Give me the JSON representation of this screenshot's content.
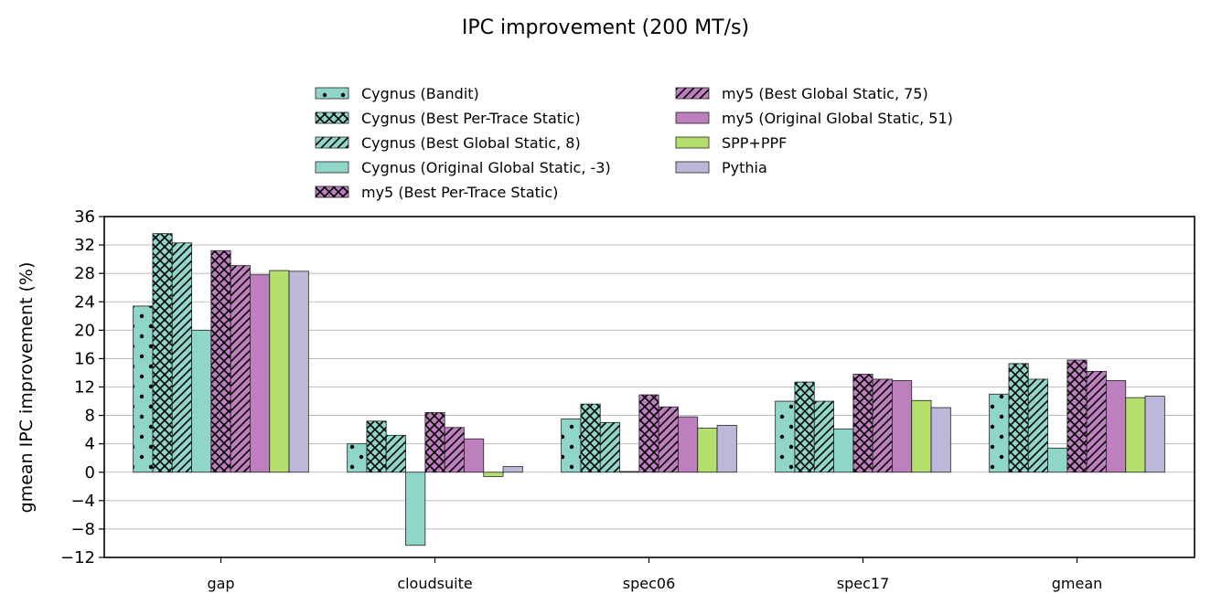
{
  "chart_data": {
    "type": "bar",
    "title": "IPC improvement (200 MT/s)",
    "xlabel": "",
    "ylabel": "gmean IPC improvement (%)",
    "ylim": [
      -12,
      36
    ],
    "yticks": [
      -12,
      -8,
      -4,
      0,
      4,
      8,
      12,
      16,
      20,
      24,
      28,
      32,
      36
    ],
    "grid": "horizontal",
    "legend_position": "top-center",
    "categories": [
      "gap",
      "cloudsuite",
      "spec06",
      "spec17",
      "gmean"
    ],
    "series": [
      {
        "name": "Cygnus (Bandit)",
        "color": "#8fd5c8",
        "hatch": "dots",
        "values": [
          23.4,
          4.0,
          7.5,
          10.0,
          11.0
        ]
      },
      {
        "name": "Cygnus (Best Per-Trace Static)",
        "color": "#8fd5c8",
        "hatch": "cross",
        "values": [
          33.6,
          7.2,
          9.6,
          12.7,
          15.3
        ]
      },
      {
        "name": "Cygnus (Best Global Static, 8)",
        "color": "#8fd5c8",
        "hatch": "diagonal",
        "values": [
          32.3,
          5.2,
          7.0,
          10.0,
          13.1
        ]
      },
      {
        "name": "Cygnus (Original Global Static, -3)",
        "color": "#8fd5c8",
        "hatch": "none",
        "values": [
          20.0,
          -10.3,
          0.1,
          6.1,
          3.4
        ]
      },
      {
        "name": "my5 (Best Per-Trace Static)",
        "color": "#bd7fbd",
        "hatch": "cross",
        "values": [
          31.2,
          8.4,
          10.9,
          13.8,
          15.8
        ]
      },
      {
        "name": "my5 (Best Global Static, 75)",
        "color": "#bd7fbd",
        "hatch": "diagonal",
        "values": [
          29.1,
          6.3,
          9.2,
          13.1,
          14.2
        ]
      },
      {
        "name": "my5 (Original Global Static, 51)",
        "color": "#bd7fbd",
        "hatch": "none",
        "values": [
          27.8,
          4.7,
          7.8,
          12.9,
          12.9
        ]
      },
      {
        "name": "SPP+PPF",
        "color": "#b5df6c",
        "hatch": "none",
        "values": [
          28.4,
          -0.6,
          6.2,
          10.1,
          10.5
        ]
      },
      {
        "name": "Pythia",
        "color": "#bcb8da",
        "hatch": "none",
        "values": [
          28.3,
          0.8,
          6.6,
          9.1,
          10.7
        ]
      }
    ]
  }
}
